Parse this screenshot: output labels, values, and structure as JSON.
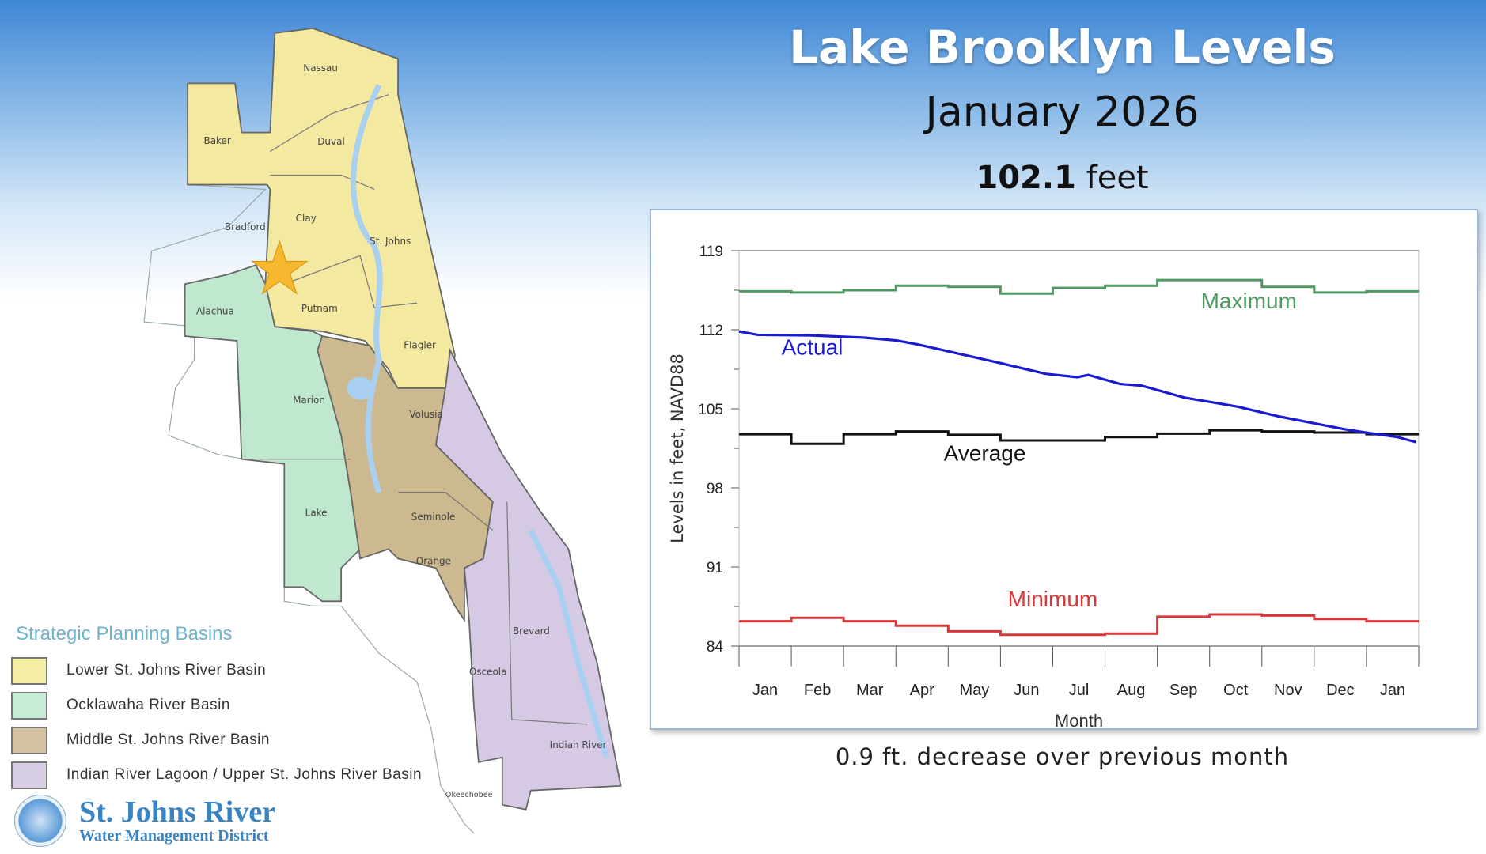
{
  "header": {
    "title": "Lake Brooklyn Levels",
    "subtitle": "January 2026",
    "level_value": "102.1",
    "level_unit": "feet"
  },
  "footer": "0.9 ft. decrease over previous month",
  "map": {
    "counties": [
      "Nassau",
      "Baker",
      "Duval",
      "Bradford",
      "Clay",
      "St. Johns",
      "Alachua",
      "Putnam",
      "Flagler",
      "Marion",
      "Volusia",
      "Lake",
      "Seminole",
      "Orange",
      "Brevard",
      "Osceola",
      "Indian River",
      "Okeechobee"
    ],
    "marker": "star-icon",
    "colors": {
      "lower": "#f3e9a0",
      "ocklawaha": "#bfe8cf",
      "middle": "#cdb990",
      "irl": "#d6c9e3",
      "water": "#a9d0f0",
      "star": "#f5b82e"
    }
  },
  "legend": {
    "title": "Strategic Planning Basins",
    "items": [
      {
        "label": "Lower St. Johns River Basin",
        "color": "#f5eea6"
      },
      {
        "label": "Ocklawaha River Basin",
        "color": "#c6ecd6"
      },
      {
        "label": "Middle St. Johns River Basin",
        "color": "#d2c2a0"
      },
      {
        "label": "Indian River Lagoon / Upper St. Johns River Basin",
        "color": "#d8cfe4"
      }
    ]
  },
  "logo": {
    "name": "St. Johns River",
    "sub": "Water Management District"
  },
  "chart_data": {
    "type": "line",
    "title": "",
    "xlabel": "Month",
    "ylabel": "Levels in feet, NAVD88",
    "categories": [
      "Jan",
      "Feb",
      "Mar",
      "Apr",
      "May",
      "Jun",
      "Jul",
      "Aug",
      "Sep",
      "Oct",
      "Nov",
      "Dec",
      "Jan"
    ],
    "ylim": [
      84,
      119
    ],
    "yticks": [
      84,
      91,
      98,
      105,
      112,
      119
    ],
    "series": [
      {
        "name": "Maximum",
        "color": "#4f9a62",
        "step": true,
        "values": [
          115.4,
          115.3,
          115.5,
          115.9,
          115.8,
          115.2,
          115.7,
          115.9,
          116.4,
          116.4,
          115.8,
          115.3,
          115.4
        ]
      },
      {
        "name": "Average",
        "color": "#111111",
        "step": true,
        "values": [
          102.75,
          101.9,
          102.75,
          103.0,
          102.7,
          102.2,
          102.2,
          102.5,
          102.8,
          103.1,
          103.0,
          102.9,
          102.75
        ]
      },
      {
        "name": "Minimum",
        "color": "#d8383a",
        "step": true,
        "values": [
          86.2,
          86.5,
          86.2,
          85.8,
          85.3,
          85.0,
          85.0,
          85.1,
          86.6,
          86.8,
          86.7,
          86.4,
          86.2
        ]
      },
      {
        "name": "Actual",
        "color": "#1a1ad0",
        "step": false,
        "x": [
          0,
          0.36,
          1.38,
          2.4,
          3.01,
          3.42,
          4.23,
          4.95,
          5.86,
          6.47,
          6.68,
          7.29,
          7.7,
          8.51,
          9.02,
          9.53,
          10.35,
          10.96,
          11.57,
          11.98,
          12.59,
          12.95
        ],
        "values": [
          111.85,
          111.55,
          111.5,
          111.3,
          111.05,
          110.7,
          109.85,
          109.1,
          108.1,
          107.8,
          108.0,
          107.2,
          107.05,
          106.0,
          105.6,
          105.2,
          104.3,
          103.75,
          103.2,
          102.9,
          102.5,
          102.05
        ]
      }
    ]
  }
}
